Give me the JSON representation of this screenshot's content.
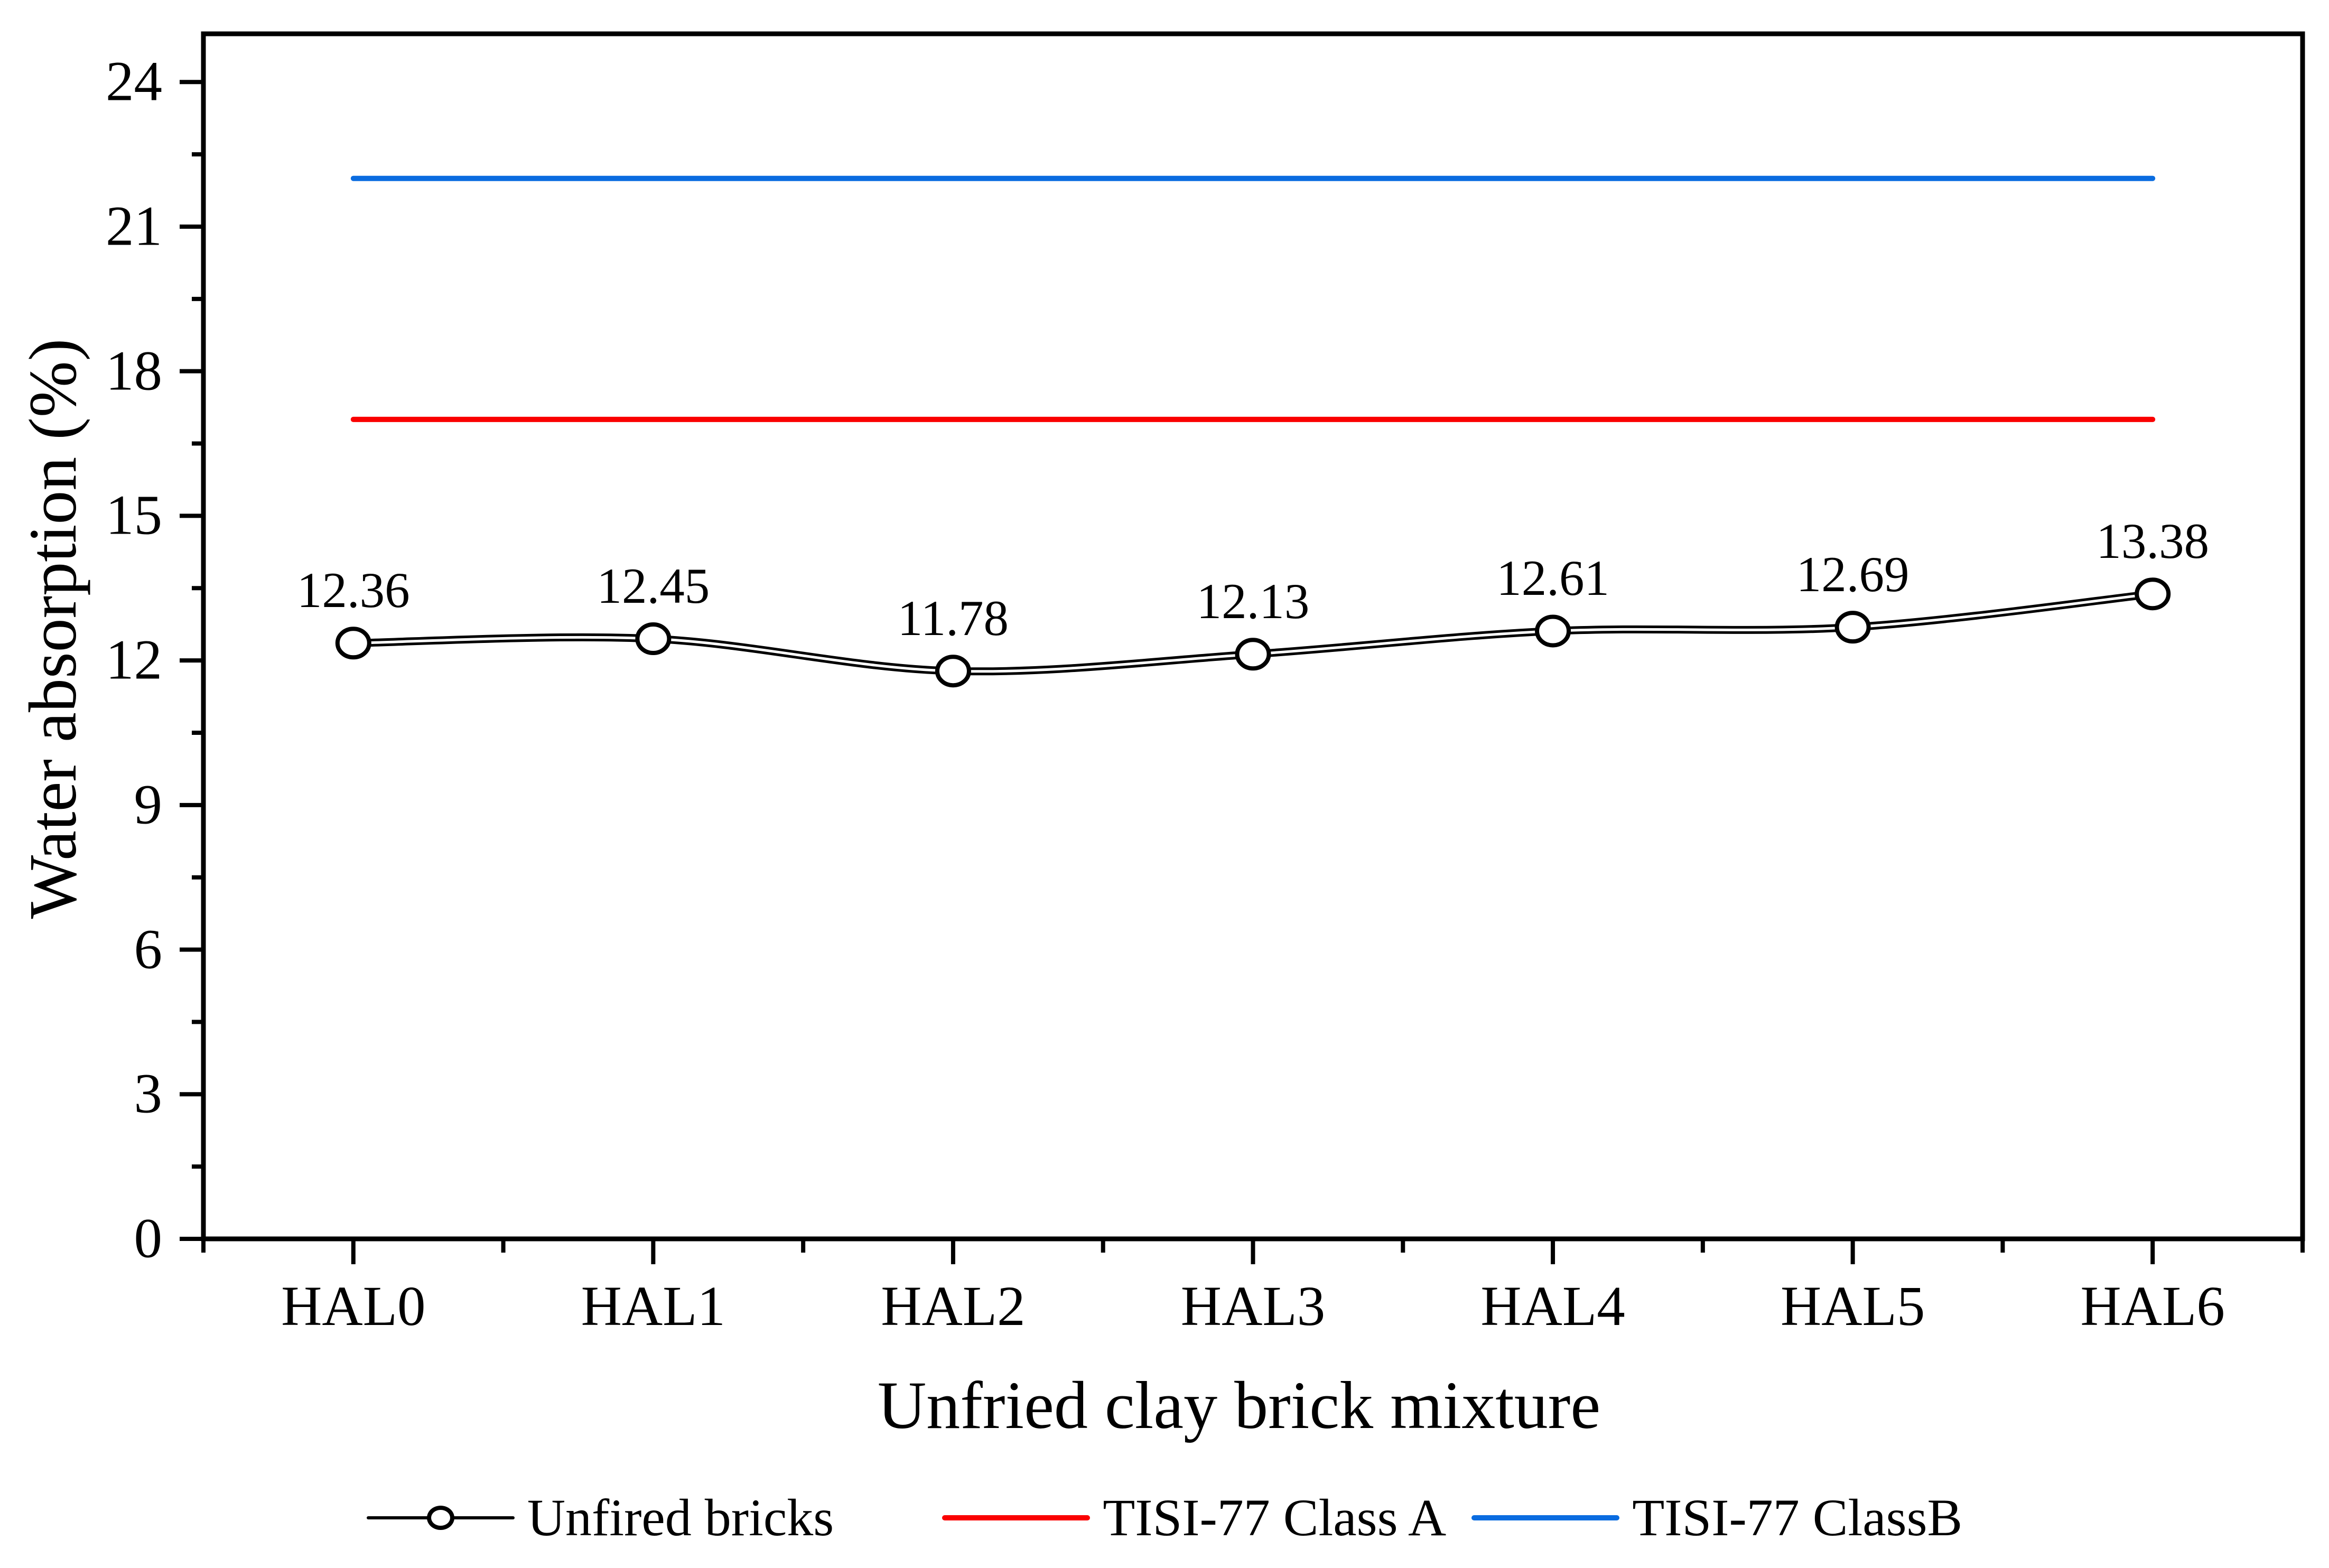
{
  "chart_data": {
    "type": "line",
    "xlabel": "Unfried clay brick mixture",
    "ylabel": "Water absorption (%)",
    "categories": [
      "HAL0",
      "HAL1",
      "HAL2",
      "HAL3",
      "HAL4",
      "HAL5",
      "HAL6"
    ],
    "series": [
      {
        "name": "Unfired bricks",
        "kind": "data",
        "values": [
          12.36,
          12.45,
          11.78,
          12.13,
          12.61,
          12.69,
          13.38
        ],
        "point_labels": [
          "12.36",
          "12.45",
          "11.78",
          "12.13",
          "12.61",
          "12.69",
          "13.38"
        ],
        "color": "#000000",
        "marker": "open-circle"
      },
      {
        "name": "TISI-77 Class A",
        "kind": "reference-line",
        "value": 17,
        "color": "#FA0000"
      },
      {
        "name": "TISI-77 ClassB",
        "kind": "reference-line",
        "value": 22,
        "color": "#0A6CE0"
      }
    ],
    "ylim": [
      0,
      25
    ],
    "yticks": [
      0,
      3,
      6,
      9,
      12,
      15,
      18,
      21,
      24
    ],
    "y_minor_ticks": [
      1.5,
      4.5,
      7.5,
      10.5,
      13.5,
      16.5,
      19.5,
      22.5
    ],
    "grid": false,
    "legend_position": "bottom"
  },
  "legend": {
    "items": [
      {
        "label": "Unfired bricks",
        "color": "#000000",
        "swatch": "line-circle"
      },
      {
        "label": "TISI-77 Class A",
        "color": "#FA0000",
        "swatch": "line"
      },
      {
        "label": "TISI-77 ClassB",
        "color": "#0A6CE0",
        "swatch": "line"
      }
    ]
  }
}
